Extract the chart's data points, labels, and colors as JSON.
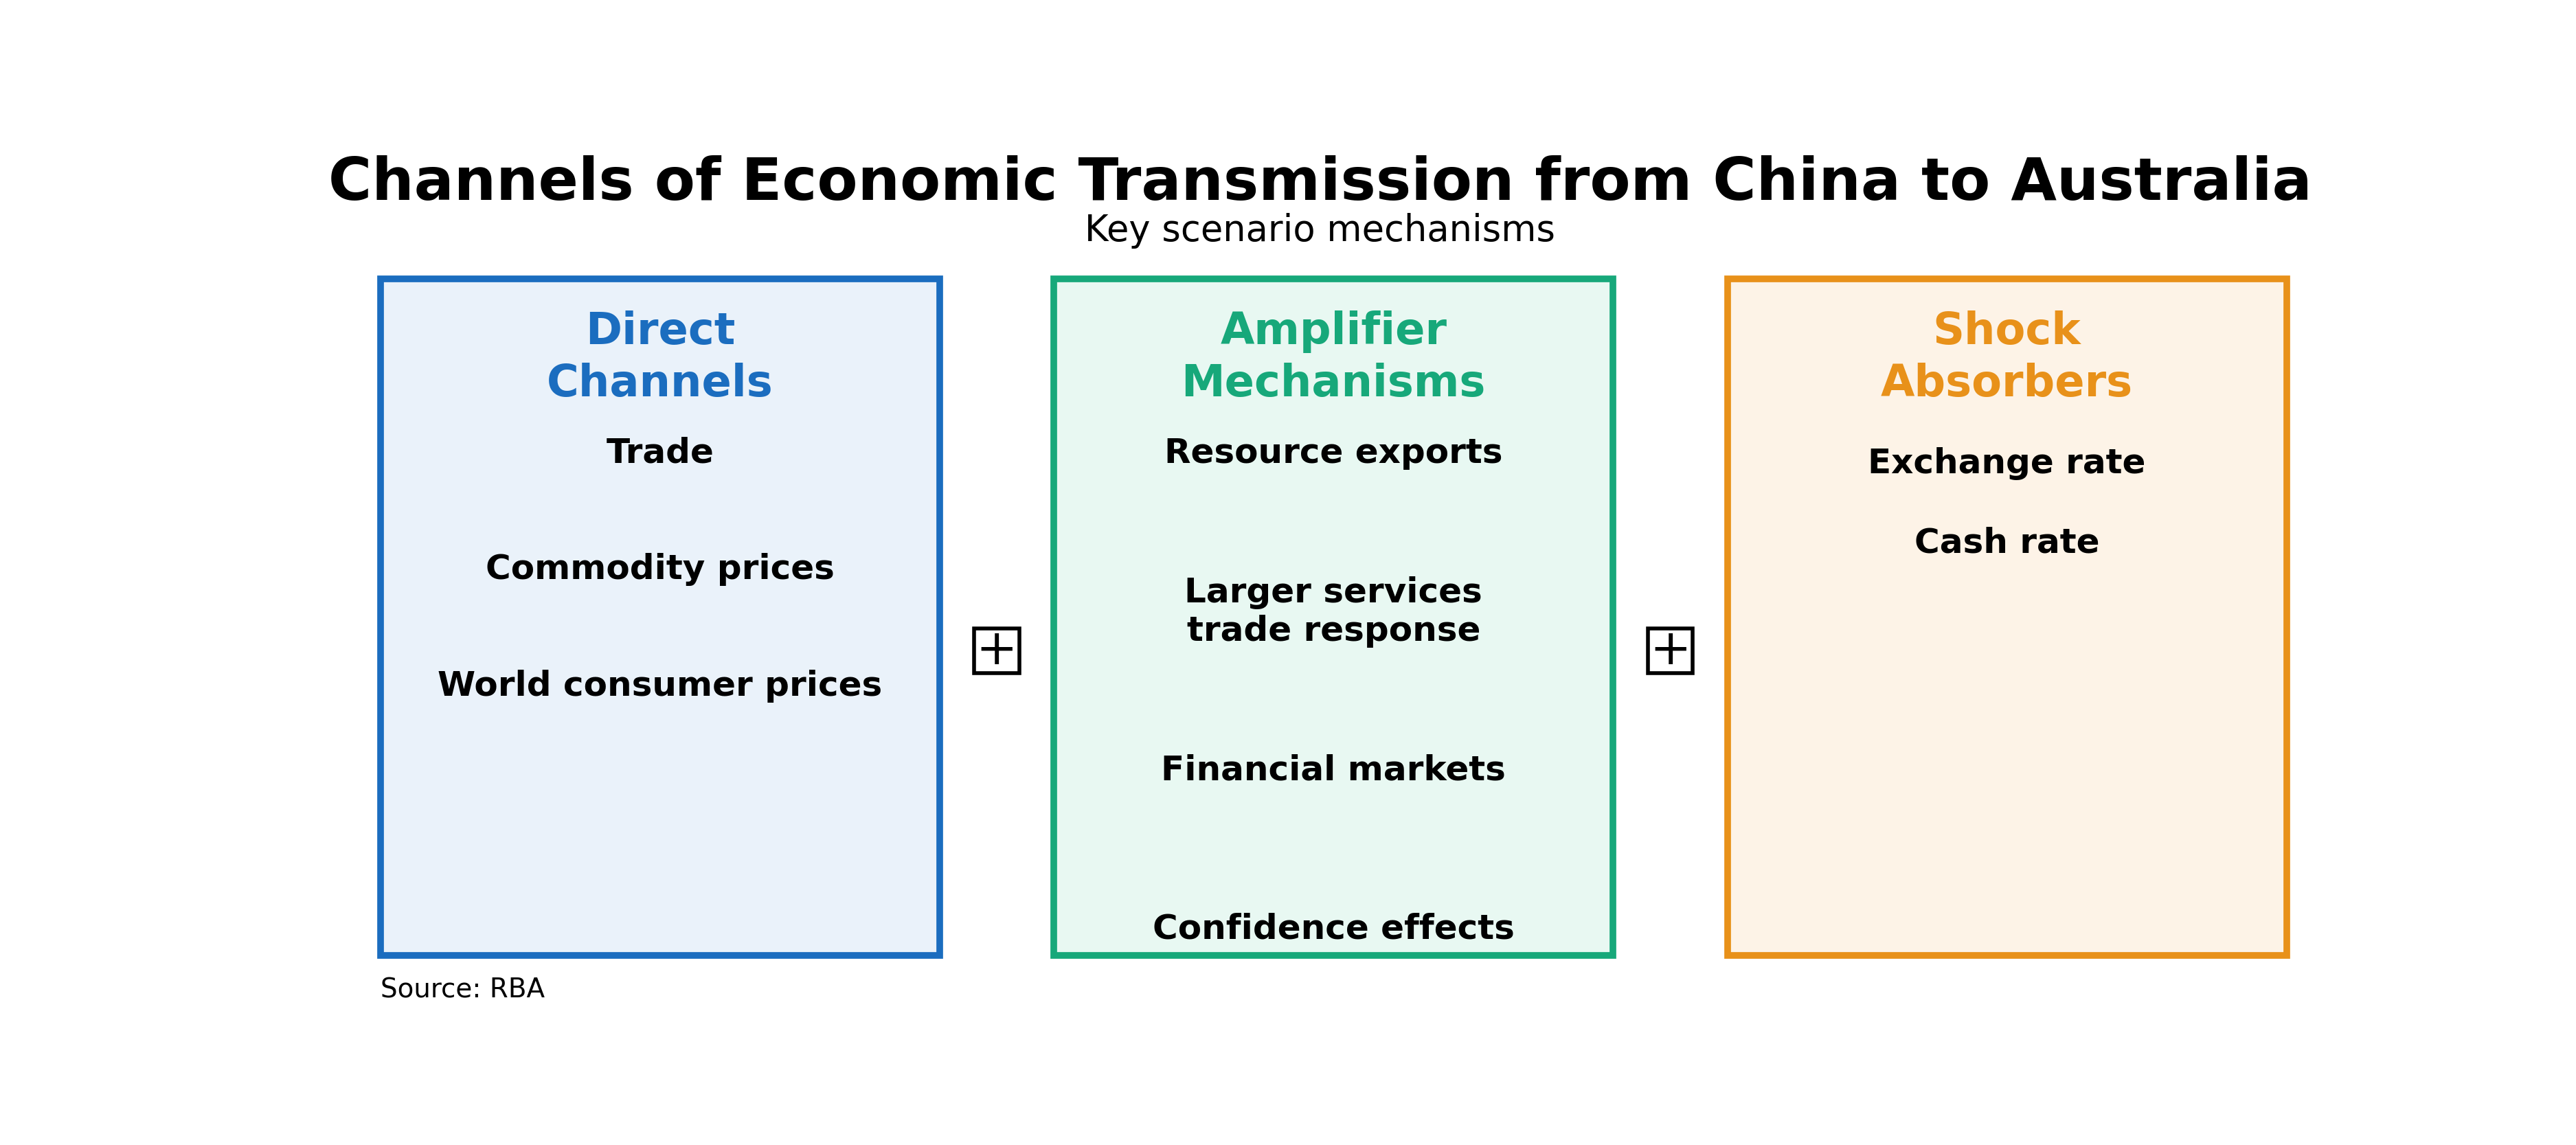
{
  "title": "Channels of Economic Transmission from China to Australia",
  "subtitle": "Key scenario mechanisms",
  "source": "Source: RBA",
  "boxes": [
    {
      "label": "Direct\nChannels",
      "label_color": "#1B6DBF",
      "bg_color": "#EAF2FA",
      "border_color": "#1B6DBF",
      "items": [
        "Trade",
        "Commodity prices",
        "World consumer prices"
      ]
    },
    {
      "label": "Amplifier\nMechanisms",
      "label_color": "#17A87A",
      "bg_color": "#E8F8F2",
      "border_color": "#17A87A",
      "items": [
        "Resource exports",
        "Larger services\ntrade response",
        "Financial markets",
        "Confidence effects"
      ]
    },
    {
      "label": "Shock\nAbsorbers",
      "label_color": "#E8911A",
      "bg_color": "#FDF3E7",
      "border_color": "#E8911A",
      "items": [
        "Exchange rate",
        "Cash rate"
      ]
    }
  ],
  "plus_box_color": "#000000",
  "plus_box_bg": "#FFFFFF",
  "title_fontsize": 62,
  "subtitle_fontsize": 38,
  "label_fontsize": 46,
  "item_fontsize": 36,
  "source_fontsize": 28,
  "border_linewidth": 7,
  "plus_linewidth": 4,
  "plus_fontsize": 52
}
